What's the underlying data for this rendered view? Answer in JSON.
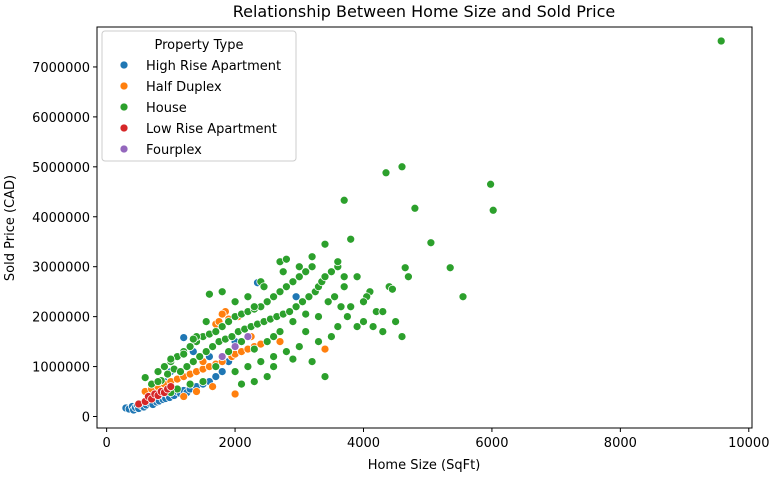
{
  "chart_data": {
    "type": "scatter",
    "title": "Relationship Between Home Size and Sold Price",
    "xlabel": "Home Size (SqFt)",
    "ylabel": "Sold Price (CAD)",
    "xlim": [
      -150,
      10050
    ],
    "ylim": [
      -230000,
      7800000
    ],
    "xticks": [
      0,
      2000,
      4000,
      6000,
      8000,
      10000
    ],
    "xtick_labels": [
      "0",
      "2000",
      "4000",
      "6000",
      "8000",
      "10000"
    ],
    "yticks": [
      0,
      1000000,
      2000000,
      3000000,
      4000000,
      5000000,
      6000000,
      7000000
    ],
    "ytick_labels": [
      "0",
      "1000000",
      "2000000",
      "3000000",
      "4000000",
      "5000000",
      "6000000",
      "7000000"
    ],
    "grid": false,
    "legend": {
      "title": "Property Type",
      "placement": "top-left"
    },
    "series": [
      {
        "name": "High Rise Apartment",
        "color": "#1f77b4",
        "points": [
          [
            300,
            170000
          ],
          [
            350,
            150000
          ],
          [
            400,
            200000
          ],
          [
            420,
            130000
          ],
          [
            450,
            180000
          ],
          [
            480,
            220000
          ],
          [
            500,
            160000
          ],
          [
            520,
            250000
          ],
          [
            550,
            210000
          ],
          [
            580,
            190000
          ],
          [
            600,
            280000
          ],
          [
            620,
            230000
          ],
          [
            650,
            300000
          ],
          [
            680,
            260000
          ],
          [
            700,
            320000
          ],
          [
            720,
            240000
          ],
          [
            750,
            350000
          ],
          [
            780,
            290000
          ],
          [
            800,
            380000
          ],
          [
            820,
            310000
          ],
          [
            850,
            400000
          ],
          [
            880,
            340000
          ],
          [
            900,
            420000
          ],
          [
            920,
            360000
          ],
          [
            950,
            450000
          ],
          [
            980,
            380000
          ],
          [
            1000,
            480000
          ],
          [
            1050,
            420000
          ],
          [
            1100,
            500000
          ],
          [
            1150,
            460000
          ],
          [
            1200,
            520000
          ],
          [
            1250,
            480000
          ],
          [
            1300,
            550000
          ],
          [
            1400,
            600000
          ],
          [
            1500,
            650000
          ],
          [
            1600,
            700000
          ],
          [
            1700,
            800000
          ],
          [
            1800,
            900000
          ],
          [
            1200,
            1580000
          ],
          [
            2350,
            2680000
          ],
          [
            2950,
            2400000
          ],
          [
            1900,
            1100000
          ],
          [
            1000,
            900000
          ],
          [
            900,
            700000
          ],
          [
            700,
            500000
          ],
          [
            1350,
            1300000
          ],
          [
            1600,
            1200000
          ],
          [
            2000,
            1500000
          ]
        ]
      },
      {
        "name": "Half Duplex",
        "color": "#ff7f0e",
        "points": [
          [
            600,
            500000
          ],
          [
            700,
            550000
          ],
          [
            800,
            600000
          ],
          [
            900,
            650000
          ],
          [
            1000,
            700000
          ],
          [
            1100,
            750000
          ],
          [
            1200,
            800000
          ],
          [
            1300,
            850000
          ],
          [
            1400,
            900000
          ],
          [
            1500,
            950000
          ],
          [
            1600,
            1000000
          ],
          [
            1700,
            1050000
          ],
          [
            1800,
            1100000
          ],
          [
            1850,
            2100000
          ],
          [
            1950,
            1200000
          ],
          [
            2000,
            1250000
          ],
          [
            2100,
            1300000
          ],
          [
            2200,
            1350000
          ],
          [
            2300,
            1400000
          ],
          [
            2400,
            1450000
          ],
          [
            2700,
            1500000
          ],
          [
            3400,
            1350000
          ],
          [
            1700,
            1850000
          ],
          [
            1750,
            1900000
          ],
          [
            1900,
            1950000
          ],
          [
            1800,
            2050000
          ],
          [
            2250,
            1600000
          ],
          [
            1500,
            1100000
          ],
          [
            1650,
            600000
          ],
          [
            1400,
            500000
          ],
          [
            2000,
            450000
          ],
          [
            1200,
            400000
          ],
          [
            2050,
            2000000
          ]
        ]
      },
      {
        "name": "House",
        "color": "#2ca02c",
        "points": [
          [
            600,
            780000
          ],
          [
            700,
            650000
          ],
          [
            800,
            900000
          ],
          [
            850,
            720000
          ],
          [
            900,
            1000000
          ],
          [
            950,
            850000
          ],
          [
            1000,
            1100000
          ],
          [
            1050,
            950000
          ],
          [
            1100,
            1200000
          ],
          [
            1150,
            900000
          ],
          [
            1200,
            1300000
          ],
          [
            1250,
            1000000
          ],
          [
            1300,
            1400000
          ],
          [
            1350,
            1100000
          ],
          [
            1400,
            1500000
          ],
          [
            1450,
            1200000
          ],
          [
            1500,
            1600000
          ],
          [
            1550,
            1300000
          ],
          [
            1600,
            1650000
          ],
          [
            1650,
            1400000
          ],
          [
            1700,
            1700000
          ],
          [
            1750,
            1500000
          ],
          [
            1800,
            1800000
          ],
          [
            1850,
            1550000
          ],
          [
            1900,
            1900000
          ],
          [
            1950,
            1600000
          ],
          [
            2000,
            2000000
          ],
          [
            2050,
            1700000
          ],
          [
            2100,
            2050000
          ],
          [
            2150,
            1750000
          ],
          [
            2200,
            2100000
          ],
          [
            2250,
            1800000
          ],
          [
            2300,
            2150000
          ],
          [
            2350,
            1850000
          ],
          [
            2400,
            2200000
          ],
          [
            2450,
            1900000
          ],
          [
            2500,
            2300000
          ],
          [
            2550,
            1950000
          ],
          [
            2600,
            2400000
          ],
          [
            2650,
            2000000
          ],
          [
            2700,
            2500000
          ],
          [
            2750,
            2050000
          ],
          [
            2800,
            2600000
          ],
          [
            2850,
            2100000
          ],
          [
            2900,
            2700000
          ],
          [
            2950,
            2200000
          ],
          [
            3000,
            2800000
          ],
          [
            3050,
            2300000
          ],
          [
            3100,
            2900000
          ],
          [
            3150,
            2400000
          ],
          [
            3200,
            3000000
          ],
          [
            3250,
            2500000
          ],
          [
            3300,
            2600000
          ],
          [
            3350,
            2700000
          ],
          [
            3400,
            2800000
          ],
          [
            3450,
            2300000
          ],
          [
            3500,
            2900000
          ],
          [
            3550,
            2400000
          ],
          [
            3600,
            3000000
          ],
          [
            3650,
            2200000
          ],
          [
            3700,
            2600000
          ],
          [
            3750,
            2000000
          ],
          [
            3800,
            2200000
          ],
          [
            3900,
            1800000
          ],
          [
            4000,
            1900000
          ],
          [
            4100,
            2500000
          ],
          [
            4200,
            2100000
          ],
          [
            4300,
            1700000
          ],
          [
            4400,
            2600000
          ],
          [
            4500,
            1900000
          ],
          [
            4600,
            1600000
          ],
          [
            2000,
            900000
          ],
          [
            2200,
            1000000
          ],
          [
            2400,
            1100000
          ],
          [
            2600,
            1200000
          ],
          [
            2800,
            1300000
          ],
          [
            3000,
            1400000
          ],
          [
            3200,
            1100000
          ],
          [
            3400,
            800000
          ],
          [
            2300,
            700000
          ],
          [
            2500,
            800000
          ],
          [
            1600,
            2450000
          ],
          [
            1800,
            2500000
          ],
          [
            2300,
            2200000
          ],
          [
            2400,
            2700000
          ],
          [
            1500,
            700000
          ],
          [
            1700,
            1000000
          ],
          [
            1900,
            1300000
          ],
          [
            2100,
            1500000
          ],
          [
            2700,
            3100000
          ],
          [
            2800,
            3150000
          ],
          [
            3000,
            3000000
          ],
          [
            3200,
            3200000
          ],
          [
            3400,
            3450000
          ],
          [
            3600,
            3100000
          ],
          [
            3800,
            3550000
          ],
          [
            3700,
            4330000
          ],
          [
            4350,
            4880000
          ],
          [
            4600,
            5000000
          ],
          [
            4800,
            4170000
          ],
          [
            5050,
            3480000
          ],
          [
            4650,
            2980000
          ],
          [
            4700,
            2800000
          ],
          [
            5350,
            2980000
          ],
          [
            5550,
            2400000
          ],
          [
            5980,
            4650000
          ],
          [
            6020,
            4130000
          ],
          [
            9570,
            7520000
          ],
          [
            3500,
            1600000
          ],
          [
            3600,
            1800000
          ],
          [
            2600,
            1000000
          ],
          [
            2900,
            1150000
          ],
          [
            1300,
            650000
          ],
          [
            1100,
            550000
          ],
          [
            1000,
            480000
          ],
          [
            3100,
            1700000
          ],
          [
            3300,
            2000000
          ],
          [
            2000,
            2300000
          ],
          [
            2200,
            2400000
          ],
          [
            2450,
            2600000
          ],
          [
            3900,
            2800000
          ],
          [
            4050,
            2400000
          ],
          [
            4150,
            1800000
          ],
          [
            4300,
            2100000
          ],
          [
            4450,
            2550000
          ],
          [
            4000,
            2300000
          ],
          [
            2300,
            1350000
          ],
          [
            2500,
            1500000
          ],
          [
            2700,
            1700000
          ],
          [
            2900,
            1900000
          ],
          [
            3100,
            2050000
          ],
          [
            1400,
            1600000
          ],
          [
            1200,
            1250000
          ],
          [
            1000,
            1150000
          ],
          [
            800,
            700000
          ],
          [
            2100,
            650000
          ],
          [
            2600,
            1600000
          ],
          [
            3300,
            1500000
          ],
          [
            3700,
            2800000
          ],
          [
            2750,
            2900000
          ],
          [
            1550,
            1900000
          ],
          [
            1350,
            1550000
          ]
        ]
      },
      {
        "name": "Low Rise Apartment",
        "color": "#d62728",
        "points": [
          [
            500,
            250000
          ],
          [
            600,
            300000
          ],
          [
            650,
            400000
          ],
          [
            700,
            350000
          ],
          [
            750,
            450000
          ],
          [
            800,
            420000
          ],
          [
            850,
            500000
          ],
          [
            900,
            480000
          ],
          [
            950,
            550000
          ],
          [
            1000,
            600000
          ]
        ]
      },
      {
        "name": "Fourplex",
        "color": "#9467bd",
        "points": [
          [
            1800,
            1200000
          ],
          [
            2000,
            1400000
          ],
          [
            2200,
            1600000
          ]
        ]
      }
    ]
  }
}
